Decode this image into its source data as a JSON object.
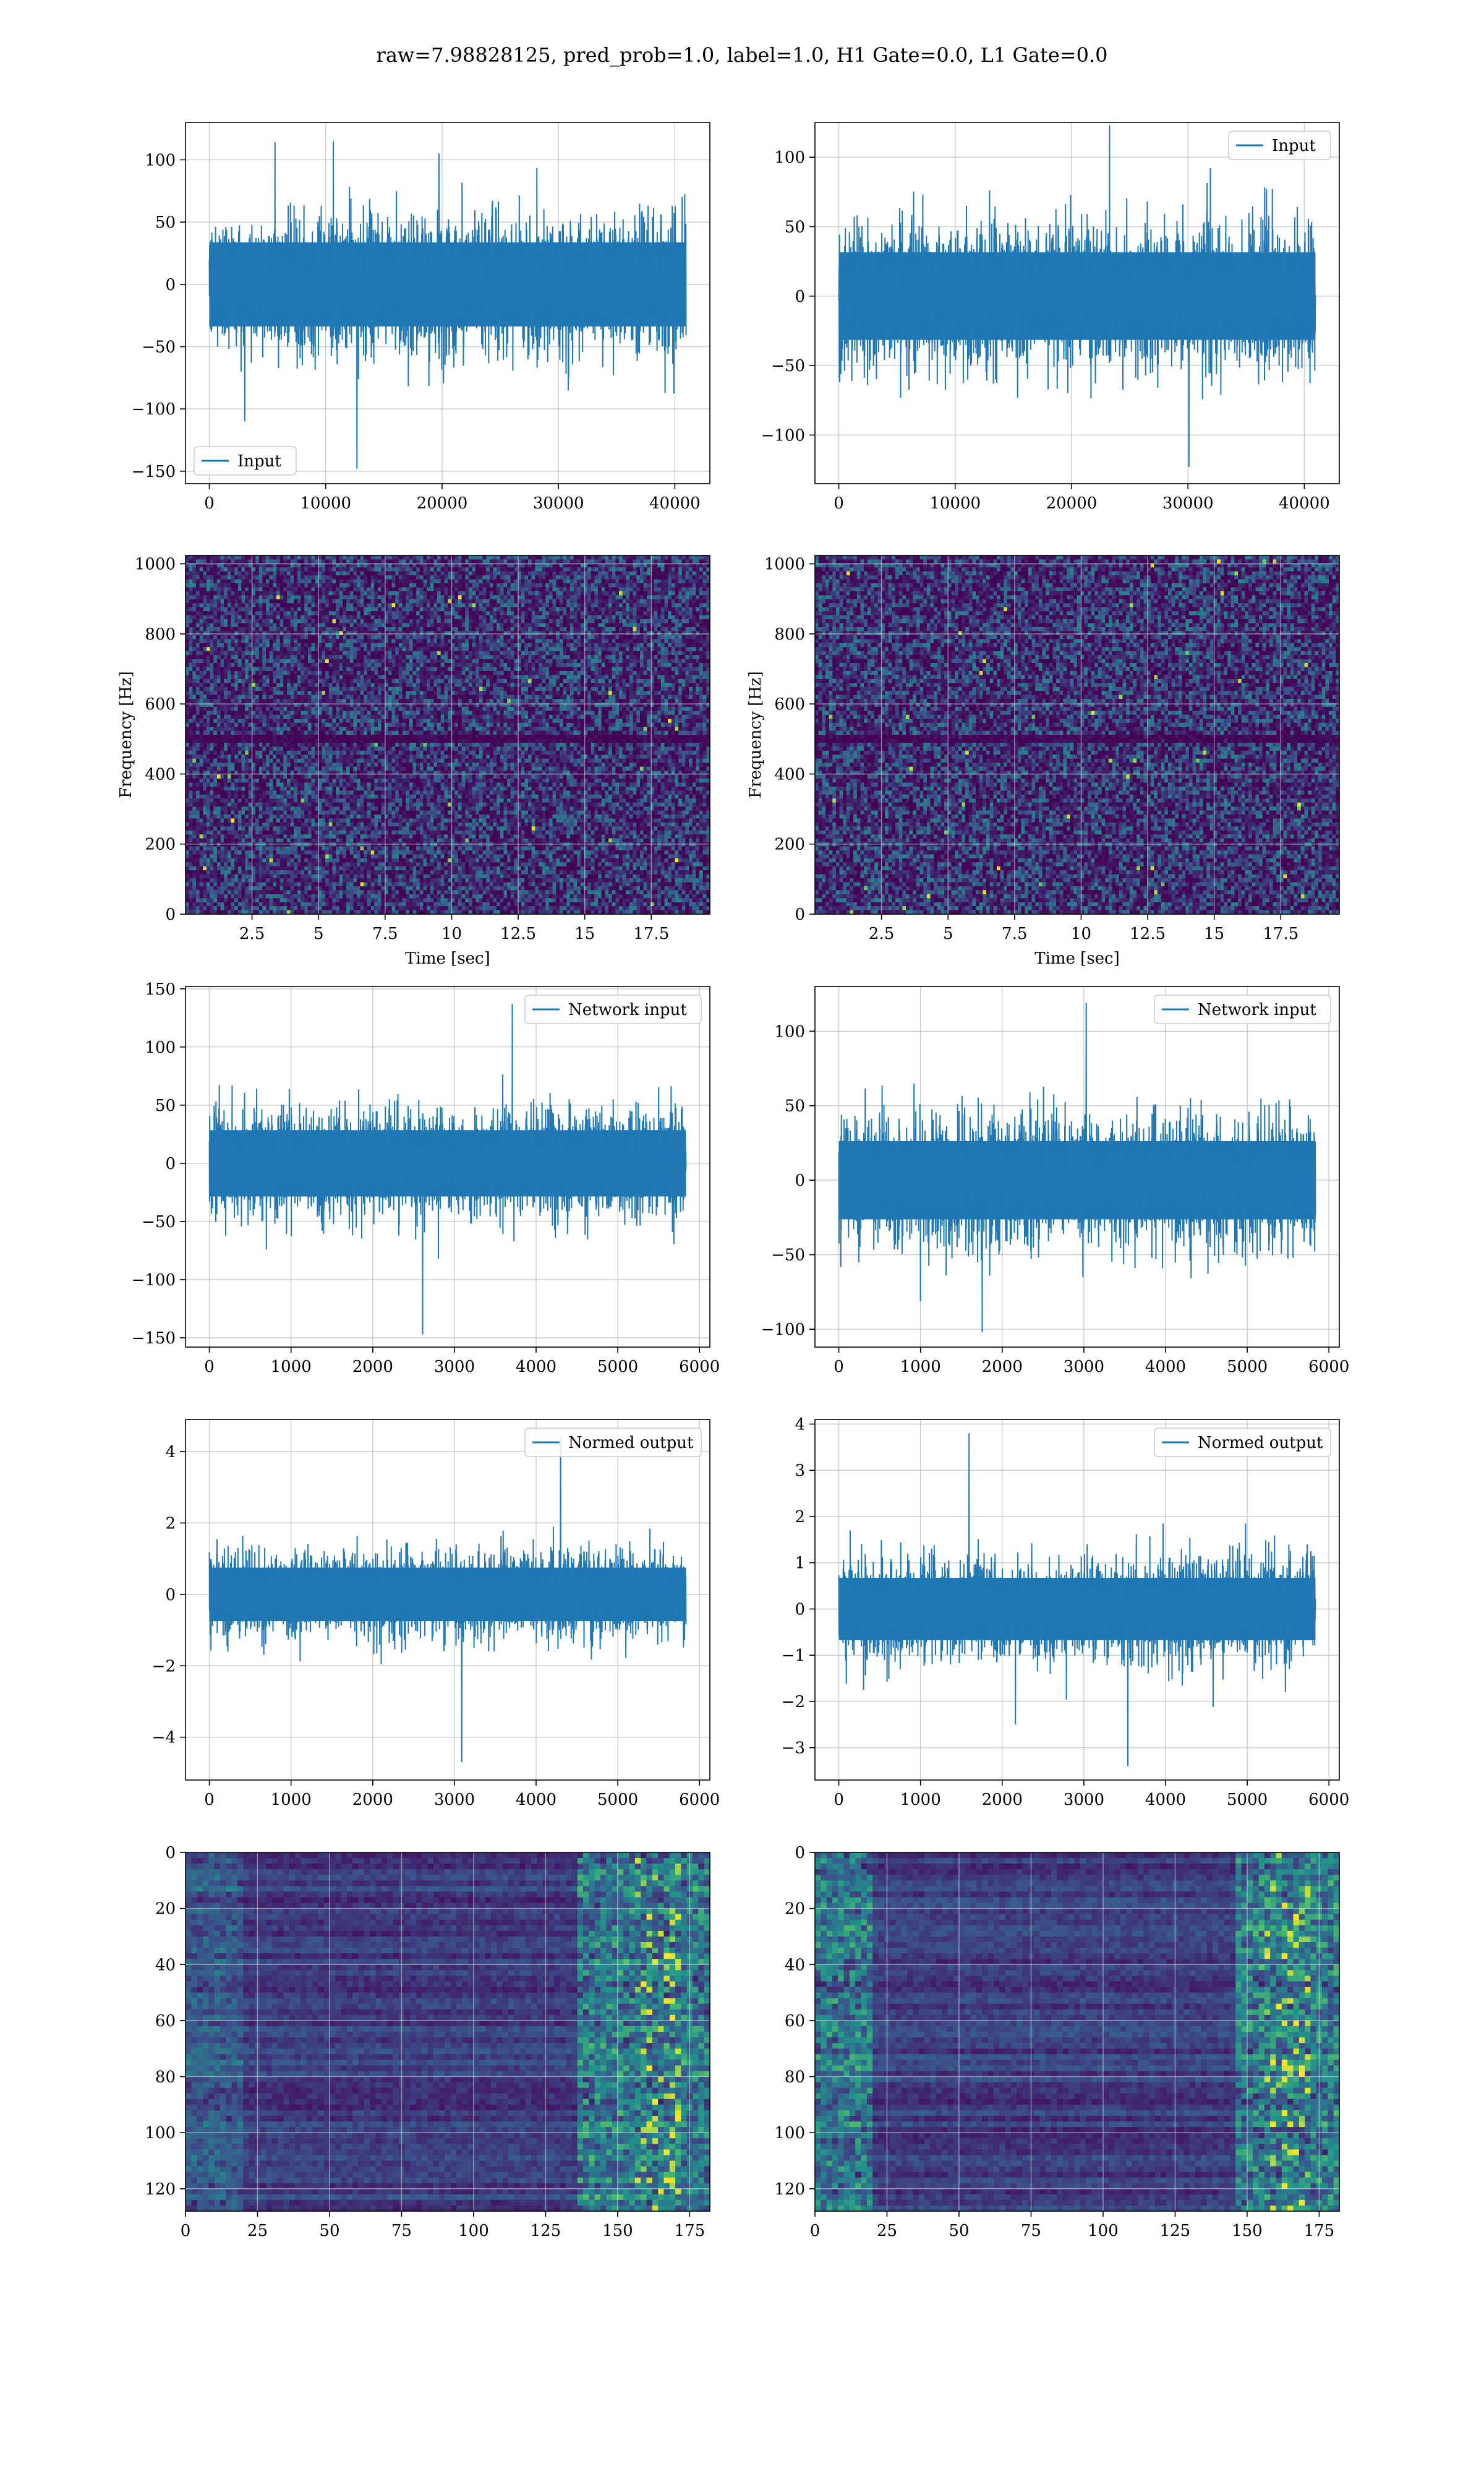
{
  "suptitle": "raw=7.98828125, pred_prob=1.0, label=1.0, H1 Gate=0.0, L1 Gate=0.0",
  "colors": {
    "line": "#1f77b4",
    "grid": "#b0b0b0",
    "heat_low": "#440154",
    "heat_mid": "#21918c",
    "heat_high": "#fde725"
  },
  "chart_data": [
    {
      "type": "line",
      "row": 1,
      "col": 1,
      "legend": {
        "label": "Input",
        "placement": "lower-left"
      },
      "x_range": [
        0,
        40960
      ],
      "xlim": [
        -2048,
        43008
      ],
      "ylim": [
        -160,
        130
      ],
      "xticks": [
        0,
        10000,
        20000,
        30000,
        40000
      ],
      "yticks": [
        -150,
        -100,
        -50,
        0,
        50,
        100
      ],
      "signal": {
        "band": 45,
        "peak": 115,
        "min": -148
      },
      "grid": true
    },
    {
      "type": "line",
      "row": 1,
      "col": 2,
      "legend": {
        "label": "Input",
        "placement": "upper-right"
      },
      "x_range": [
        0,
        40960
      ],
      "xlim": [
        -2048,
        43008
      ],
      "ylim": [
        -135,
        125
      ],
      "xticks": [
        0,
        10000,
        20000,
        30000,
        40000
      ],
      "yticks": [
        -100,
        -50,
        0,
        50,
        100
      ],
      "signal": {
        "band": 42,
        "peak": 123,
        "min": -123
      },
      "grid": true
    },
    {
      "type": "heatmap",
      "subtype": "spectrogram",
      "row": 2,
      "col": 1,
      "xlabel": "Time [sec]",
      "ylabel": "Frequency [Hz]",
      "xlim": [
        0,
        19.7
      ],
      "ylim": [
        0,
        1024
      ],
      "xticks": [
        2.5,
        5.0,
        7.5,
        10.0,
        12.5,
        15.0,
        17.5
      ],
      "yticks": [
        0,
        200,
        400,
        600,
        800,
        1000
      ],
      "notch_hz": [
        500
      ],
      "grid": true
    },
    {
      "type": "heatmap",
      "subtype": "spectrogram",
      "row": 2,
      "col": 2,
      "xlabel": "Time [sec]",
      "ylabel": "Frequency [Hz]",
      "xlim": [
        0,
        19.7
      ],
      "ylim": [
        0,
        1024
      ],
      "xticks": [
        2.5,
        5.0,
        7.5,
        10.0,
        12.5,
        15.0,
        17.5
      ],
      "yticks": [
        0,
        200,
        400,
        600,
        800,
        1000
      ],
      "notch_hz": [
        500
      ],
      "grid": true
    },
    {
      "type": "line",
      "row": 3,
      "col": 1,
      "legend": {
        "label": "Network input",
        "placement": "upper-right"
      },
      "x_range": [
        0,
        5835
      ],
      "xlim": [
        -292,
        6127
      ],
      "ylim": [
        -158,
        152
      ],
      "xticks": [
        0,
        1000,
        2000,
        3000,
        4000,
        5000,
        6000
      ],
      "yticks": [
        -150,
        -100,
        -50,
        0,
        50,
        100,
        150
      ],
      "signal": {
        "band": 38,
        "peak": 137,
        "min": -147
      },
      "grid": true
    },
    {
      "type": "line",
      "row": 3,
      "col": 2,
      "legend": {
        "label": "Network input",
        "placement": "upper-right"
      },
      "x_range": [
        0,
        5835
      ],
      "xlim": [
        -292,
        6127
      ],
      "ylim": [
        -112,
        130
      ],
      "xticks": [
        0,
        1000,
        2000,
        3000,
        4000,
        5000,
        6000
      ],
      "yticks": [
        -100,
        -50,
        0,
        50,
        100
      ],
      "signal": {
        "band": 35,
        "peak": 119,
        "min": -102
      },
      "grid": true
    },
    {
      "type": "line",
      "row": 4,
      "col": 1,
      "legend": {
        "label": "Normed output",
        "placement": "upper-right"
      },
      "x_range": [
        0,
        5835
      ],
      "xlim": [
        -292,
        6127
      ],
      "ylim": [
        -5.2,
        4.9
      ],
      "xticks": [
        0,
        1000,
        2000,
        3000,
        4000,
        5000,
        6000
      ],
      "yticks": [
        -4,
        -2,
        0,
        2,
        4
      ],
      "signal": {
        "band": 1.0,
        "peak": 4.4,
        "min": -4.7
      },
      "grid": true
    },
    {
      "type": "line",
      "row": 4,
      "col": 2,
      "legend": {
        "label": "Normed output",
        "placement": "upper-right"
      },
      "x_range": [
        0,
        5835
      ],
      "xlim": [
        -292,
        6127
      ],
      "ylim": [
        -3.7,
        4.1
      ],
      "xticks": [
        0,
        1000,
        2000,
        3000,
        4000,
        5000,
        6000
      ],
      "yticks": [
        -3,
        -2,
        -1,
        0,
        1,
        2,
        3,
        4
      ],
      "signal": {
        "band": 0.9,
        "peak": 3.8,
        "min": -3.4
      },
      "grid": true
    },
    {
      "type": "heatmap",
      "subtype": "feature-map",
      "row": 5,
      "col": 1,
      "xlim": [
        0,
        182
      ],
      "ylim": [
        128,
        0
      ],
      "xticks": [
        0,
        25,
        50,
        75,
        100,
        125,
        150,
        175
      ],
      "yticks": [
        0,
        20,
        40,
        60,
        80,
        100,
        120
      ],
      "bright_columns": [
        135,
        182
      ],
      "grid": true
    },
    {
      "type": "heatmap",
      "subtype": "feature-map",
      "row": 5,
      "col": 2,
      "xlim": [
        0,
        182
      ],
      "ylim": [
        128,
        0
      ],
      "xticks": [
        0,
        25,
        50,
        75,
        100,
        125,
        150,
        175
      ],
      "yticks": [
        0,
        20,
        40,
        60,
        80,
        100,
        120
      ],
      "bright_columns": [
        145,
        182
      ],
      "grid": true
    }
  ]
}
